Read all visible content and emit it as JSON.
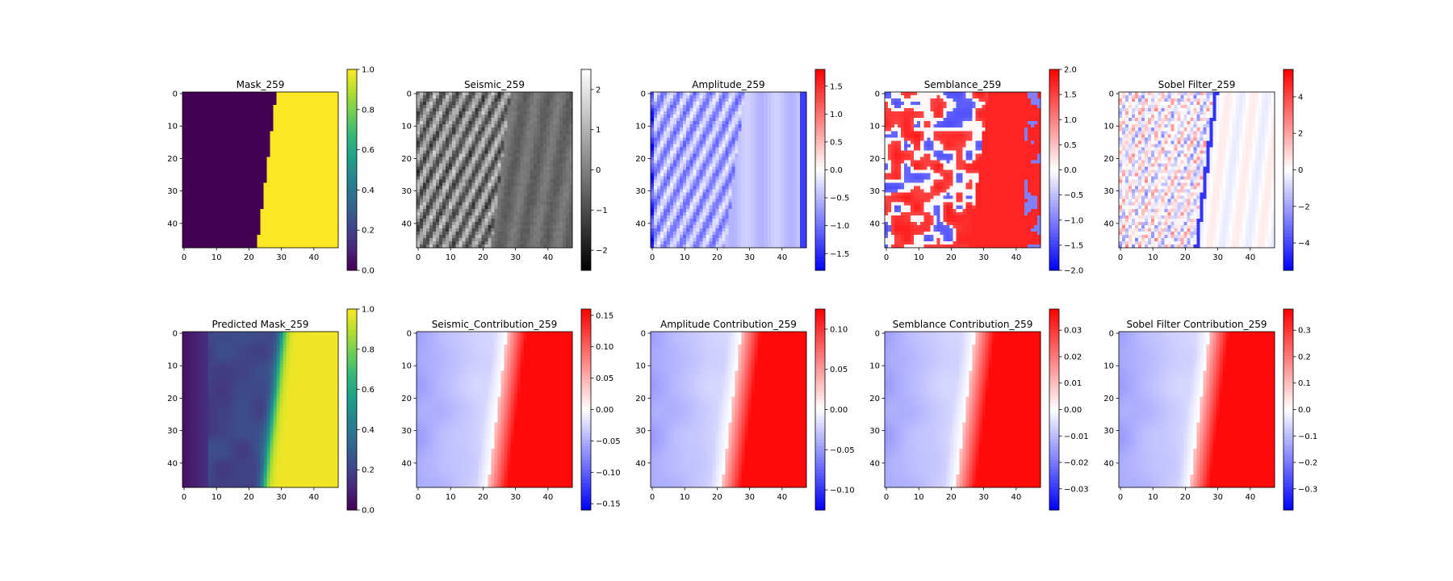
{
  "figure": {
    "background": "#ffffff"
  },
  "chart_data": [
    {
      "type": "heatmap",
      "title": "Mask_259",
      "colormap": "viridis",
      "pattern": "mask",
      "x_ticks": [
        "0",
        "10",
        "20",
        "30",
        "40"
      ],
      "y_ticks": [
        "0",
        "10",
        "20",
        "30",
        "40"
      ],
      "xlim": [
        0,
        47
      ],
      "ylim": [
        0,
        47
      ],
      "colorbar": {
        "range": [
          0.0,
          1.0
        ],
        "ticks": [
          "0.0",
          "0.2",
          "0.4",
          "0.6",
          "0.8",
          "1.0"
        ]
      }
    },
    {
      "type": "heatmap",
      "title": "Seismic_259",
      "colormap": "gray",
      "pattern": "seismic",
      "x_ticks": [
        "0",
        "10",
        "20",
        "30",
        "40"
      ],
      "y_ticks": [
        "0",
        "10",
        "20",
        "30",
        "40"
      ],
      "xlim": [
        0,
        47
      ],
      "ylim": [
        0,
        47
      ],
      "colorbar": {
        "range": [
          -2.5,
          2.5
        ],
        "ticks": [
          "−2",
          "−1",
          "0",
          "1",
          "2"
        ]
      }
    },
    {
      "type": "heatmap",
      "title": "Amplitude_259",
      "colormap": "bwr",
      "pattern": "amplitude",
      "x_ticks": [
        "0",
        "10",
        "20",
        "30",
        "40"
      ],
      "y_ticks": [
        "0",
        "10",
        "20",
        "30",
        "40"
      ],
      "xlim": [
        0,
        47
      ],
      "ylim": [
        0,
        47
      ],
      "colorbar": {
        "range": [
          -1.8,
          1.8
        ],
        "ticks": [
          "−1.5",
          "−1.0",
          "−0.5",
          "0.0",
          "0.5",
          "1.0",
          "1.5"
        ]
      }
    },
    {
      "type": "heatmap",
      "title": "Semblance_259",
      "colormap": "bwr",
      "pattern": "semblance",
      "x_ticks": [
        "0",
        "10",
        "20",
        "30",
        "40"
      ],
      "y_ticks": [
        "0",
        "10",
        "20",
        "30",
        "40"
      ],
      "xlim": [
        0,
        47
      ],
      "ylim": [
        0,
        47
      ],
      "colorbar": {
        "range": [
          -2.0,
          2.0
        ],
        "ticks": [
          "−2.0",
          "−1.5",
          "−1.0",
          "−0.5",
          "0.0",
          "0.5",
          "1.0",
          "1.5",
          "2.0"
        ]
      }
    },
    {
      "type": "heatmap",
      "title": "Sobel Filter_259",
      "colormap": "bwr",
      "pattern": "sobel",
      "x_ticks": [
        "0",
        "10",
        "20",
        "30",
        "40"
      ],
      "y_ticks": [
        "0",
        "10",
        "20",
        "30",
        "40"
      ],
      "xlim": [
        0,
        47
      ],
      "ylim": [
        0,
        47
      ],
      "colorbar": {
        "range": [
          -5.5,
          5.5
        ],
        "ticks": [
          "−4",
          "−2",
          "0",
          "2",
          "4"
        ]
      }
    },
    {
      "type": "heatmap",
      "title": "Predicted Mask_259",
      "colormap": "viridis",
      "pattern": "predicted",
      "x_ticks": [
        "0",
        "10",
        "20",
        "30",
        "40"
      ],
      "y_ticks": [
        "0",
        "10",
        "20",
        "30",
        "40"
      ],
      "xlim": [
        0,
        47
      ],
      "ylim": [
        0,
        47
      ],
      "colorbar": {
        "range": [
          0.0,
          1.0
        ],
        "ticks": [
          "0.0",
          "0.2",
          "0.4",
          "0.6",
          "0.8",
          "1.0"
        ]
      }
    },
    {
      "type": "heatmap",
      "title": "Seismic_Contribution_259",
      "colormap": "bwr",
      "pattern": "contribution",
      "x_ticks": [
        "0",
        "10",
        "20",
        "30",
        "40"
      ],
      "y_ticks": [
        "0",
        "10",
        "20",
        "30",
        "40"
      ],
      "xlim": [
        0,
        47
      ],
      "ylim": [
        0,
        47
      ],
      "colorbar": {
        "range": [
          -0.16,
          0.16
        ],
        "ticks": [
          "−0.15",
          "−0.10",
          "−0.05",
          "0.00",
          "0.05",
          "0.10",
          "0.15"
        ]
      }
    },
    {
      "type": "heatmap",
      "title": "Amplitude Contribution_259",
      "colormap": "bwr",
      "pattern": "contribution",
      "x_ticks": [
        "0",
        "10",
        "20",
        "30",
        "40"
      ],
      "y_ticks": [
        "0",
        "10",
        "20",
        "30",
        "40"
      ],
      "xlim": [
        0,
        47
      ],
      "ylim": [
        0,
        47
      ],
      "colorbar": {
        "range": [
          -0.125,
          0.125
        ],
        "ticks": [
          "−0.10",
          "−0.05",
          "0.00",
          "0.05",
          "0.10"
        ]
      }
    },
    {
      "type": "heatmap",
      "title": "Semblance Contribution_259",
      "colormap": "bwr",
      "pattern": "contribution",
      "x_ticks": [
        "0",
        "10",
        "20",
        "30",
        "40"
      ],
      "y_ticks": [
        "0",
        "10",
        "20",
        "30",
        "40"
      ],
      "xlim": [
        0,
        47
      ],
      "ylim": [
        0,
        47
      ],
      "colorbar": {
        "range": [
          -0.038,
          0.038
        ],
        "ticks": [
          "−0.03",
          "−0.02",
          "−0.01",
          "0.00",
          "0.01",
          "0.02",
          "0.03"
        ]
      }
    },
    {
      "type": "heatmap",
      "title": "Sobel Filter Contribution_259",
      "colormap": "bwr",
      "pattern": "contribution",
      "x_ticks": [
        "0",
        "10",
        "20",
        "30",
        "40"
      ],
      "y_ticks": [
        "0",
        "10",
        "20",
        "30",
        "40"
      ],
      "xlim": [
        0,
        47
      ],
      "ylim": [
        0,
        47
      ],
      "colorbar": {
        "range": [
          -0.38,
          0.38
        ],
        "ticks": [
          "−0.3",
          "−0.2",
          "−0.1",
          "0.0",
          "0.1",
          "0.2",
          "0.3"
        ]
      }
    }
  ]
}
